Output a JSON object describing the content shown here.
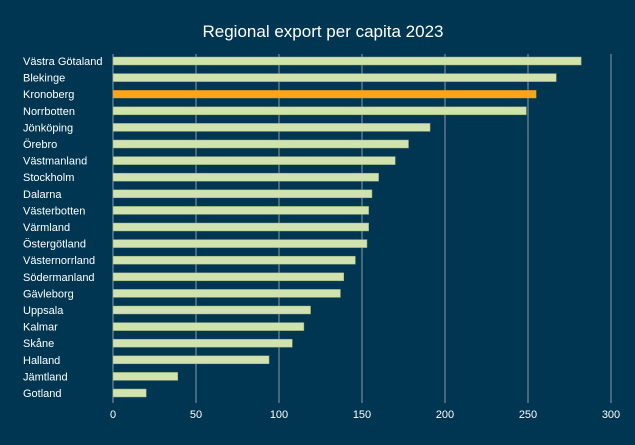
{
  "chart_data": {
    "type": "bar",
    "orientation": "horizontal",
    "title": "Regional export per capita 2023",
    "xlabel": "",
    "ylabel": "",
    "xlim": [
      0,
      300
    ],
    "xticks": [
      0,
      50,
      100,
      150,
      200,
      250,
      300
    ],
    "grid": "vertical",
    "categories": [
      "Västra Götaland",
      "Blekinge",
      "Kronoberg",
      "Norrbotten",
      "Jönköping",
      "Örebro",
      "Västmanland",
      "Stockholm",
      "Dalarna",
      "Västerbotten",
      "Värmland",
      "Östergötland",
      "Västernorrland",
      "Södermanland",
      "Gävleborg",
      "Uppsala",
      "Kalmar",
      "Skåne",
      "Halland",
      "Jämtland",
      "Gotland"
    ],
    "values": [
      282,
      267,
      255,
      249,
      191,
      178,
      170,
      160,
      156,
      154,
      154,
      153,
      146,
      139,
      137,
      119,
      115,
      108,
      94,
      39,
      20
    ],
    "highlight": "Kronoberg",
    "colors": {
      "background": "#003652",
      "bar": "#d0e2ad",
      "highlight": "#f8a51b",
      "grid": "#8a9aa6",
      "text": "#ffffff"
    }
  }
}
